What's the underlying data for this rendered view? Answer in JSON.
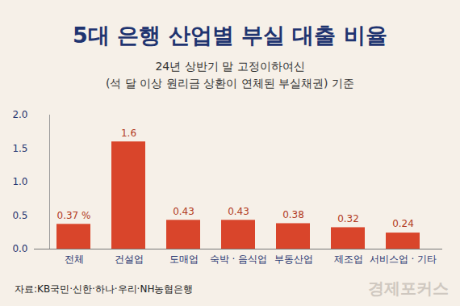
{
  "chart_data": {
    "type": "bar",
    "title": "5대 은행 산업별 부실 대출 비율",
    "subtitle": [
      "24년 상반기 말 고정이하여신",
      "(석 달 이상 원리금 상환이 연체된  부실채권) 기준"
    ],
    "categories": [
      "전체",
      "건설업",
      "도매업",
      "숙박 · 음식업",
      "부동산업",
      "제조업",
      "서비스업 · 기타"
    ],
    "values": [
      0.37,
      1.6,
      0.43,
      0.43,
      0.38,
      0.32,
      0.24
    ],
    "value_labels": [
      "0.37 %",
      "1.6",
      "0.43",
      "0.43",
      "0.38",
      "0.32",
      "0.24"
    ],
    "data_labels": true,
    "color": "#d9452b",
    "ylim": [
      0,
      2
    ],
    "yticks": [
      0,
      0.5,
      1,
      1.5,
      2
    ],
    "grid": false,
    "source": "자료:KB국민·신한·하나·우리·NH농협은행",
    "watermark": "경제포커스"
  }
}
